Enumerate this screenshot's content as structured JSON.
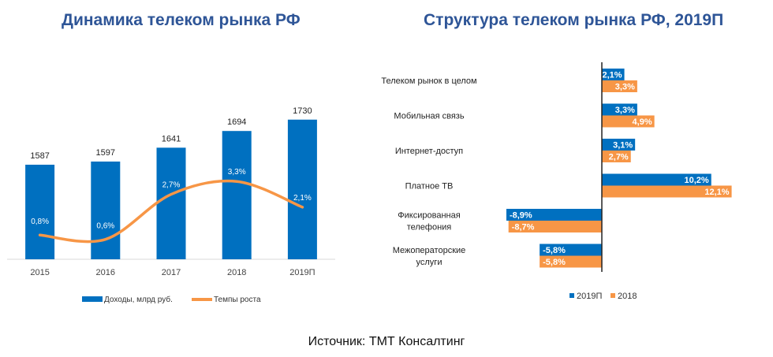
{
  "source": "Источник: ТМТ Консалтинг",
  "colors": {
    "blue": "#0070c0",
    "orange": "#f79646",
    "title": "#2e5597"
  },
  "chart_data": [
    {
      "type": "bar",
      "title": "Динамика телеком рынка РФ",
      "categories": [
        "2015",
        "2016",
        "2017",
        "2018",
        "2019П"
      ],
      "series": [
        {
          "name": "Доходы, млрд руб.",
          "kind": "bar",
          "values": [
            1587,
            1597,
            1641,
            1694,
            1730
          ],
          "labels": [
            "1587",
            "1597",
            "1641",
            "1694",
            "1730"
          ]
        },
        {
          "name": "Темпы роста",
          "kind": "line",
          "values": [
            0.8,
            0.6,
            2.7,
            3.3,
            2.1
          ],
          "labels": [
            "0,8%",
            "0,6%",
            "2,7%",
            "3,3%",
            "2,1%"
          ]
        }
      ],
      "legend": "bottom"
    },
    {
      "type": "bar",
      "orientation": "horizontal",
      "title": "Структура телеком рынка РФ, 2019П",
      "categories": [
        [
          "Телеком рынок в целом"
        ],
        [
          "Мобильная связь"
        ],
        [
          "Интернет-доступ"
        ],
        [
          "Платное ТВ"
        ],
        [
          "Фиксированная",
          "телефония"
        ],
        [
          "Межоператорские",
          "услуги"
        ]
      ],
      "series": [
        {
          "name": "2019П",
          "values": [
            2.1,
            3.3,
            3.1,
            10.2,
            -8.9,
            -5.8
          ],
          "labels": [
            "2,1%",
            "3,3%",
            "3,1%",
            "10,2%",
            "-8,9%",
            "-5,8%"
          ]
        },
        {
          "name": "2018",
          "values": [
            3.3,
            4.9,
            2.7,
            12.1,
            -8.7,
            -5.8
          ],
          "labels": [
            "3,3%",
            "4,9%",
            "2,7%",
            "12,1%",
            "-8,7%",
            "-5,8%"
          ]
        }
      ],
      "legend": "bottom"
    }
  ]
}
